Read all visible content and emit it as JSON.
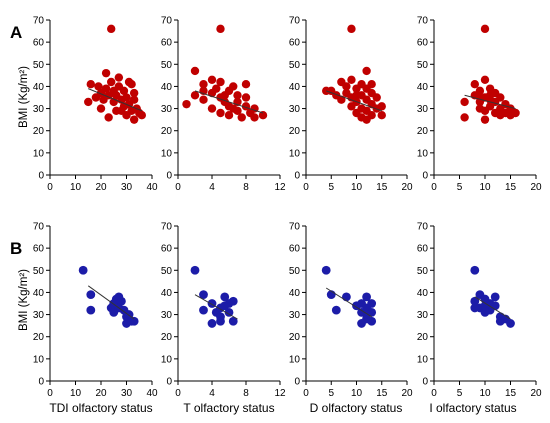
{
  "panel_labels": [
    "A",
    "B"
  ],
  "y_axis_title": "BMI (Kg/m²)",
  "x_axis_titles": [
    "TDI olfactory status",
    "T olfactory status",
    "D olfactory status",
    "I olfactory status"
  ],
  "colors": {
    "row_a": "#c00000",
    "row_b": "#1c1ca8",
    "axis": "#000000",
    "trend": "#333333"
  },
  "chart_data": [
    {
      "type": "scatter",
      "panel": "A",
      "xlabel": "TDI olfactory status",
      "ylabel": "BMI (Kg/m²)",
      "xlim": [
        0,
        40
      ],
      "ylim": [
        0,
        70
      ],
      "xticks": [
        0,
        10,
        20,
        30,
        40
      ],
      "yticks": [
        0,
        10,
        20,
        30,
        40,
        50,
        60,
        70
      ],
      "grid": false,
      "trend": [
        [
          15,
          39
        ],
        [
          36,
          29
        ]
      ],
      "points": [
        [
          24,
          66
        ],
        [
          16,
          41
        ],
        [
          18,
          35
        ],
        [
          19,
          40
        ],
        [
          20,
          37
        ],
        [
          21,
          34
        ],
        [
          22,
          39
        ],
        [
          22,
          46
        ],
        [
          23,
          36
        ],
        [
          23,
          26
        ],
        [
          24,
          42
        ],
        [
          25,
          38
        ],
        [
          25,
          33
        ],
        [
          26,
          36
        ],
        [
          26,
          29
        ],
        [
          27,
          40
        ],
        [
          27,
          44
        ],
        [
          28,
          34
        ],
        [
          29,
          38
        ],
        [
          29,
          31
        ],
        [
          30,
          35
        ],
        [
          30,
          27
        ],
        [
          31,
          42
        ],
        [
          31,
          32
        ],
        [
          32,
          41
        ],
        [
          32,
          29
        ],
        [
          33,
          37
        ],
        [
          33,
          34
        ],
        [
          33,
          25
        ],
        [
          34,
          30
        ],
        [
          35,
          28
        ],
        [
          36,
          27
        ],
        [
          15,
          33
        ],
        [
          20,
          30
        ],
        [
          28,
          29
        ]
      ]
    },
    {
      "type": "scatter",
      "panel": "A",
      "xlabel": "T olfactory status",
      "ylabel": "BMI (Kg/m²)",
      "xlim": [
        0,
        12
      ],
      "ylim": [
        0,
        70
      ],
      "xticks": [
        0,
        4,
        8,
        12
      ],
      "yticks": [
        0,
        10,
        20,
        30,
        40,
        50,
        60,
        70
      ],
      "grid": false,
      "trend": [
        [
          2,
          38
        ],
        [
          10,
          28
        ]
      ],
      "points": [
        [
          5,
          66
        ],
        [
          1,
          32
        ],
        [
          2,
          47
        ],
        [
          2,
          36
        ],
        [
          3,
          38
        ],
        [
          3,
          34
        ],
        [
          3,
          41
        ],
        [
          4,
          43
        ],
        [
          4,
          37
        ],
        [
          4,
          30
        ],
        [
          4.5,
          39
        ],
        [
          5,
          35
        ],
        [
          5,
          28
        ],
        [
          5,
          42
        ],
        [
          5.5,
          33
        ],
        [
          6,
          38
        ],
        [
          6,
          31
        ],
        [
          6,
          27
        ],
        [
          6.5,
          40
        ],
        [
          7,
          36
        ],
        [
          7,
          33
        ],
        [
          7,
          29
        ],
        [
          7.5,
          26
        ],
        [
          8,
          35
        ],
        [
          8,
          31
        ],
        [
          8,
          41
        ],
        [
          8.5,
          28
        ],
        [
          9,
          30
        ],
        [
          9,
          26
        ],
        [
          10,
          27
        ],
        [
          5.5,
          36
        ],
        [
          6.5,
          30
        ]
      ]
    },
    {
      "type": "scatter",
      "panel": "A",
      "xlabel": "D olfactory status",
      "ylabel": "BMI (Kg/m²)",
      "xlim": [
        0,
        20
      ],
      "ylim": [
        0,
        70
      ],
      "xticks": [
        0,
        5,
        10,
        15,
        20
      ],
      "yticks": [
        0,
        10,
        20,
        30,
        40,
        50,
        60,
        70
      ],
      "grid": false,
      "trend": [
        [
          4,
          38
        ],
        [
          15,
          29
        ]
      ],
      "points": [
        [
          9,
          66
        ],
        [
          4,
          38
        ],
        [
          5,
          38
        ],
        [
          6,
          36
        ],
        [
          7,
          42
        ],
        [
          7,
          34
        ],
        [
          8,
          40
        ],
        [
          8,
          37
        ],
        [
          9,
          43
        ],
        [
          9,
          35
        ],
        [
          9,
          31
        ],
        [
          10,
          39
        ],
        [
          10,
          33
        ],
        [
          10,
          28
        ],
        [
          11,
          41
        ],
        [
          11,
          36
        ],
        [
          11,
          30
        ],
        [
          11,
          26
        ],
        [
          12,
          47
        ],
        [
          12,
          39
        ],
        [
          12,
          34
        ],
        [
          12,
          29
        ],
        [
          13,
          37
        ],
        [
          13,
          32
        ],
        [
          13,
          27
        ],
        [
          14,
          35
        ],
        [
          14,
          30
        ],
        [
          15,
          31
        ],
        [
          15,
          27
        ],
        [
          12,
          25
        ],
        [
          10,
          36
        ],
        [
          13,
          41
        ]
      ]
    },
    {
      "type": "scatter",
      "panel": "A",
      "xlabel": "I olfactory status",
      "ylabel": "BMI (Kg/m²)",
      "xlim": [
        0,
        20
      ],
      "ylim": [
        0,
        70
      ],
      "xticks": [
        0,
        5,
        10,
        15,
        20
      ],
      "yticks": [
        0,
        10,
        20,
        30,
        40,
        50,
        60,
        70
      ],
      "grid": false,
      "trend": [
        [
          6,
          36
        ],
        [
          16,
          30
        ]
      ],
      "points": [
        [
          10,
          66
        ],
        [
          6,
          26
        ],
        [
          6,
          33
        ],
        [
          8,
          41
        ],
        [
          8,
          36
        ],
        [
          9,
          38
        ],
        [
          9,
          33
        ],
        [
          9,
          30
        ],
        [
          10,
          43
        ],
        [
          10,
          35
        ],
        [
          10,
          29
        ],
        [
          10,
          25
        ],
        [
          11,
          39
        ],
        [
          11,
          34
        ],
        [
          11,
          31
        ],
        [
          12,
          37
        ],
        [
          12,
          33
        ],
        [
          12,
          28
        ],
        [
          13,
          35
        ],
        [
          13,
          30
        ],
        [
          13,
          27
        ],
        [
          14,
          32
        ],
        [
          14,
          28
        ],
        [
          15,
          30
        ],
        [
          15,
          27
        ],
        [
          16,
          28
        ],
        [
          11,
          36
        ],
        [
          9,
          35
        ]
      ]
    },
    {
      "type": "scatter",
      "panel": "B",
      "xlabel": "TDI olfactory status",
      "ylabel": "BMI (Kg/m²)",
      "xlim": [
        0,
        40
      ],
      "ylim": [
        0,
        70
      ],
      "xticks": [
        0,
        10,
        20,
        30,
        40
      ],
      "yticks": [
        0,
        10,
        20,
        30,
        40,
        50,
        60,
        70
      ],
      "grid": false,
      "trend": [
        [
          15,
          43
        ],
        [
          33,
          28
        ]
      ],
      "points": [
        [
          13,
          50
        ],
        [
          16,
          39
        ],
        [
          16,
          32
        ],
        [
          24,
          33
        ],
        [
          25,
          35
        ],
        [
          25,
          31
        ],
        [
          26,
          37
        ],
        [
          27,
          38
        ],
        [
          27,
          33
        ],
        [
          28,
          36
        ],
        [
          29,
          32
        ],
        [
          30,
          29
        ],
        [
          30,
          26
        ],
        [
          31,
          30
        ],
        [
          32,
          27
        ],
        [
          33,
          27
        ]
      ]
    },
    {
      "type": "scatter",
      "panel": "B",
      "xlabel": "T olfactory status",
      "ylabel": "BMI (Kg/m²)",
      "xlim": [
        0,
        12
      ],
      "ylim": [
        0,
        70
      ],
      "xticks": [
        0,
        4,
        8,
        12
      ],
      "yticks": [
        0,
        10,
        20,
        30,
        40,
        50,
        60,
        70
      ],
      "grid": false,
      "trend": [
        [
          2,
          39
        ],
        [
          7,
          28
        ]
      ],
      "points": [
        [
          2,
          50
        ],
        [
          3,
          39
        ],
        [
          3,
          32
        ],
        [
          4,
          35
        ],
        [
          4,
          26
        ],
        [
          4.5,
          31
        ],
        [
          5,
          33
        ],
        [
          5,
          29
        ],
        [
          5.5,
          38
        ],
        [
          5.5,
          34
        ],
        [
          6,
          35
        ],
        [
          6,
          31
        ],
        [
          6.5,
          36
        ],
        [
          6.5,
          27
        ],
        [
          5,
          27
        ]
      ]
    },
    {
      "type": "scatter",
      "panel": "B",
      "xlabel": "D olfactory status",
      "ylabel": "BMI (Kg/m²)",
      "xlim": [
        0,
        20
      ],
      "ylim": [
        0,
        70
      ],
      "xticks": [
        0,
        5,
        10,
        15,
        20
      ],
      "yticks": [
        0,
        10,
        20,
        30,
        40,
        50,
        60,
        70
      ],
      "grid": false,
      "trend": [
        [
          4,
          42
        ],
        [
          13,
          29
        ]
      ],
      "points": [
        [
          4,
          50
        ],
        [
          5,
          39
        ],
        [
          6,
          32
        ],
        [
          8,
          38
        ],
        [
          10,
          34
        ],
        [
          11,
          35
        ],
        [
          11,
          31
        ],
        [
          11,
          26
        ],
        [
          12,
          38
        ],
        [
          12,
          33
        ],
        [
          12,
          28
        ],
        [
          13,
          35
        ],
        [
          13,
          31
        ],
        [
          13,
          27
        ],
        [
          12,
          30
        ]
      ]
    },
    {
      "type": "scatter",
      "panel": "B",
      "xlabel": "I olfactory status",
      "ylabel": "BMI (Kg/m²)",
      "xlim": [
        0,
        20
      ],
      "ylim": [
        0,
        70
      ],
      "xticks": [
        0,
        5,
        10,
        15,
        20
      ],
      "yticks": [
        0,
        10,
        20,
        30,
        40,
        50,
        60,
        70
      ],
      "grid": false,
      "trend": [
        [
          8,
          38
        ],
        [
          15,
          28
        ]
      ],
      "points": [
        [
          8,
          50
        ],
        [
          8,
          36
        ],
        [
          8,
          33
        ],
        [
          9,
          39
        ],
        [
          9,
          33
        ],
        [
          10,
          37
        ],
        [
          10,
          31
        ],
        [
          11,
          35
        ],
        [
          11,
          32
        ],
        [
          12,
          38
        ],
        [
          12,
          34
        ],
        [
          13,
          29
        ],
        [
          13,
          27
        ],
        [
          14,
          28
        ],
        [
          15,
          26
        ],
        [
          10,
          34
        ]
      ]
    }
  ]
}
